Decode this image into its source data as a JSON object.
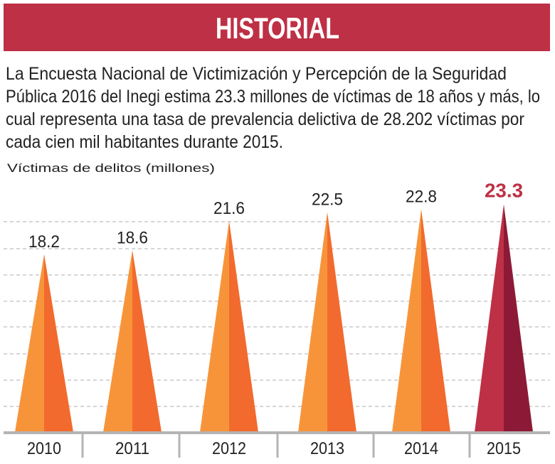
{
  "header": {
    "title": "HISTORIAL",
    "color": "#be3045"
  },
  "intro": {
    "lines": [
      "La Encuesta Nacional de Victimización y Percepción de la Seguridad",
      "Pública 2016 del Inegi estima 23.3 millones de víctimas de 18 años y más, lo",
      "cual representa una tasa de prevalencia delictiva de 28.202 víctimas por",
      "cada cien mil habitantes durante 2015."
    ]
  },
  "chart_data": {
    "type": "bar",
    "mark_shape": "triangle",
    "title": "",
    "ylabel": "Víctimas de delitos (millones)",
    "xlabel": "",
    "categories": [
      "2010",
      "2011",
      "2012",
      "2013",
      "2014",
      "2015"
    ],
    "values": [
      18.2,
      18.6,
      21.6,
      22.5,
      22.8,
      23.3
    ],
    "value_labels": [
      "18.2",
      "18.6",
      "21.6",
      "22.5",
      "22.8",
      "23.3"
    ],
    "highlight_index": 5,
    "ylim": [
      0,
      23.3
    ],
    "grid": true,
    "colors": {
      "light": "#f7943a",
      "dark": "#f26a2e",
      "highlight_light": "#be3045",
      "highlight_dark": "#8c1a36",
      "highlight_label": "#be3045",
      "grid": "#bdbdbd",
      "axis": "#b4b4b4"
    }
  }
}
